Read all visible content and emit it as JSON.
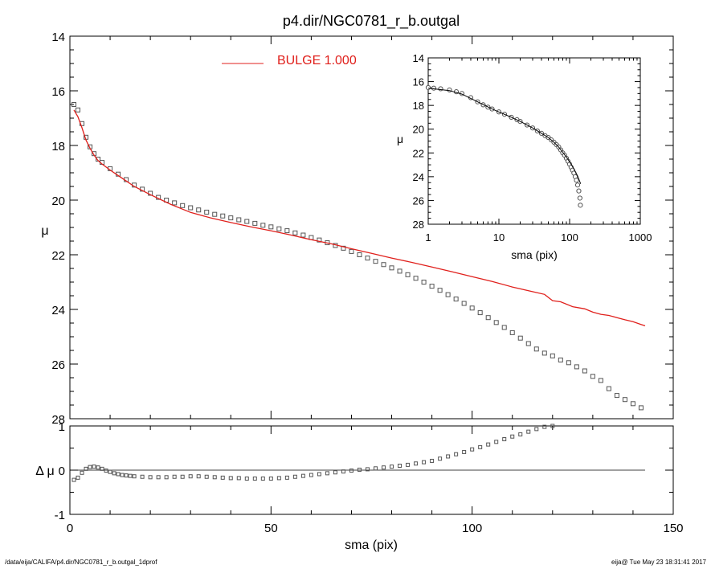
{
  "footer": {
    "left": "/data/eija/CALIFA/p4.dir/NGC0781_r_b.outgal_1dprof",
    "right": "eija@  Tue May 23 18:31:41 2017"
  },
  "chart_data": [
    {
      "id": "main",
      "type": "scatter",
      "title": "p4.dir/NGC0781_r_b.outgal",
      "xlabel": "",
      "ylabel": "μ",
      "xlim": [
        0,
        150
      ],
      "ylim": [
        28,
        14
      ],
      "yticks": [
        "14",
        "16",
        "18",
        "20",
        "22",
        "24",
        "26",
        "28"
      ],
      "legend": {
        "label": "BULGE  1.000",
        "color": "#e0201c",
        "placement": "top-center"
      },
      "series": [
        {
          "kind": "points",
          "style": "open-square",
          "color": "#555555",
          "x": [
            1,
            2,
            3,
            4,
            5,
            6,
            7,
            8,
            10,
            12,
            14,
            16,
            18,
            20,
            22,
            24,
            26,
            28,
            30,
            32,
            34,
            36,
            38,
            40,
            42,
            44,
            46,
            48,
            50,
            52,
            54,
            56,
            58,
            60,
            62,
            64,
            66,
            68,
            70,
            72,
            74,
            76,
            78,
            80,
            82,
            84,
            86,
            88,
            90,
            92,
            94,
            96,
            98,
            100,
            102,
            104,
            106,
            108,
            110,
            112,
            114,
            116,
            118,
            120,
            122,
            124,
            126,
            128,
            130,
            132,
            134,
            136,
            138,
            140,
            142
          ],
          "y": [
            16.5,
            16.7,
            17.2,
            17.7,
            18.05,
            18.3,
            18.5,
            18.62,
            18.85,
            19.05,
            19.25,
            19.45,
            19.6,
            19.75,
            19.9,
            20.0,
            20.1,
            20.2,
            20.28,
            20.36,
            20.44,
            20.52,
            20.58,
            20.65,
            20.72,
            20.78,
            20.85,
            20.92,
            20.98,
            21.05,
            21.12,
            21.2,
            21.28,
            21.37,
            21.46,
            21.56,
            21.66,
            21.76,
            21.88,
            22.0,
            22.12,
            22.24,
            22.36,
            22.48,
            22.6,
            22.73,
            22.86,
            23.0,
            23.15,
            23.3,
            23.46,
            23.62,
            23.78,
            23.95,
            24.12,
            24.3,
            24.48,
            24.66,
            24.85,
            25.05,
            25.25,
            25.45,
            25.6,
            25.7,
            25.85,
            25.95,
            26.1,
            26.25,
            26.45,
            26.6,
            26.9,
            27.15,
            27.3,
            27.45,
            27.6
          ]
        },
        {
          "kind": "line",
          "color": "#e0201c",
          "x": [
            1,
            2,
            3,
            4,
            5,
            6,
            7,
            8,
            10,
            12,
            14,
            16,
            18,
            20,
            25,
            30,
            35,
            40,
            45,
            50,
            55,
            60,
            65,
            70,
            75,
            80,
            85,
            90,
            95,
            100,
            105,
            110,
            115,
            118,
            120,
            122,
            125,
            128,
            130,
            132,
            134,
            136,
            138,
            140,
            142,
            143
          ],
          "y": [
            16.7,
            16.95,
            17.35,
            17.8,
            18.1,
            18.35,
            18.55,
            18.68,
            18.9,
            19.1,
            19.3,
            19.5,
            19.65,
            19.8,
            20.15,
            20.45,
            20.65,
            20.82,
            20.98,
            21.12,
            21.28,
            21.45,
            21.6,
            21.78,
            21.95,
            22.12,
            22.28,
            22.45,
            22.62,
            22.8,
            22.98,
            23.18,
            23.35,
            23.45,
            23.68,
            23.72,
            23.9,
            23.98,
            24.1,
            24.18,
            24.22,
            24.3,
            24.38,
            24.45,
            24.55,
            24.6
          ]
        }
      ]
    },
    {
      "id": "inset",
      "type": "scatter",
      "title": "",
      "xlabel": "sma (pix)",
      "ylabel": "μ",
      "xscale": "log",
      "xlim": [
        1,
        1000
      ],
      "xticks": [
        "1",
        "10",
        "100",
        "1000"
      ],
      "ylim": [
        28,
        14
      ],
      "yticks": [
        "14",
        "16",
        "18",
        "20",
        "22",
        "24",
        "26",
        "28"
      ],
      "series": [
        {
          "kind": "points",
          "style": "open-circle",
          "color": "#555555",
          "x": [
            1,
            1.2,
            1.5,
            2,
            2.5,
            3,
            4,
            5,
            6,
            7,
            8,
            10,
            12,
            15,
            18,
            20,
            25,
            30,
            35,
            40,
            45,
            50,
            55,
            60,
            65,
            70,
            75,
            80,
            85,
            90,
            95,
            100,
            105,
            110,
            115,
            120,
            125,
            130,
            135,
            140,
            142
          ],
          "y": [
            16.5,
            16.55,
            16.6,
            16.7,
            16.85,
            17.0,
            17.35,
            17.7,
            17.95,
            18.15,
            18.3,
            18.55,
            18.75,
            19.0,
            19.2,
            19.35,
            19.65,
            19.9,
            20.15,
            20.35,
            20.55,
            20.7,
            20.9,
            21.1,
            21.3,
            21.5,
            21.75,
            22.0,
            22.2,
            22.45,
            22.7,
            22.95,
            23.2,
            23.45,
            23.7,
            24.0,
            24.3,
            24.7,
            25.2,
            25.8,
            26.4
          ]
        },
        {
          "kind": "line",
          "color": "#000000",
          "x": [
            1,
            2,
            3,
            5,
            8,
            10,
            15,
            20,
            30,
            40,
            50,
            60,
            70,
            80,
            90,
            100,
            110,
            120,
            130,
            140,
            143
          ],
          "y": [
            16.55,
            16.75,
            17.05,
            17.7,
            18.3,
            18.55,
            19.0,
            19.35,
            19.9,
            20.35,
            20.7,
            21.1,
            21.5,
            21.95,
            22.35,
            22.75,
            23.15,
            23.55,
            23.95,
            24.45,
            24.6
          ]
        }
      ]
    },
    {
      "id": "residual",
      "type": "scatter",
      "title": "",
      "xlabel": "sma (pix)",
      "ylabel": "Δ μ",
      "xlim": [
        0,
        150
      ],
      "xticks": [
        "0",
        "50",
        "100",
        "150"
      ],
      "ylim": [
        -1,
        1
      ],
      "yticks": [
        "-1",
        "0",
        "1"
      ],
      "series": [
        {
          "kind": "points",
          "style": "open-square",
          "color": "#555555",
          "x": [
            1,
            2,
            3,
            4,
            5,
            6,
            7,
            8,
            9,
            10,
            11,
            12,
            13,
            14,
            15,
            16,
            18,
            20,
            22,
            24,
            26,
            28,
            30,
            32,
            34,
            36,
            38,
            40,
            42,
            44,
            46,
            48,
            50,
            52,
            54,
            56,
            58,
            60,
            62,
            64,
            66,
            68,
            70,
            72,
            74,
            76,
            78,
            80,
            82,
            84,
            86,
            88,
            90,
            92,
            94,
            96,
            98,
            100,
            102,
            104,
            106,
            108,
            110,
            112,
            114,
            116,
            118,
            120
          ],
          "y": [
            -0.22,
            -0.17,
            -0.06,
            0.03,
            0.07,
            0.08,
            0.06,
            0.03,
            -0.01,
            -0.04,
            -0.07,
            -0.09,
            -0.11,
            -0.12,
            -0.13,
            -0.14,
            -0.15,
            -0.16,
            -0.16,
            -0.16,
            -0.15,
            -0.15,
            -0.14,
            -0.14,
            -0.15,
            -0.16,
            -0.17,
            -0.18,
            -0.18,
            -0.19,
            -0.19,
            -0.19,
            -0.19,
            -0.18,
            -0.17,
            -0.15,
            -0.13,
            -0.11,
            -0.09,
            -0.07,
            -0.05,
            -0.03,
            -0.01,
            0.01,
            0.02,
            0.04,
            0.06,
            0.08,
            0.1,
            0.12,
            0.15,
            0.18,
            0.21,
            0.26,
            0.31,
            0.36,
            0.41,
            0.47,
            0.52,
            0.58,
            0.64,
            0.7,
            0.76,
            0.81,
            0.87,
            0.93,
            0.98,
            1.0
          ]
        }
      ]
    }
  ]
}
